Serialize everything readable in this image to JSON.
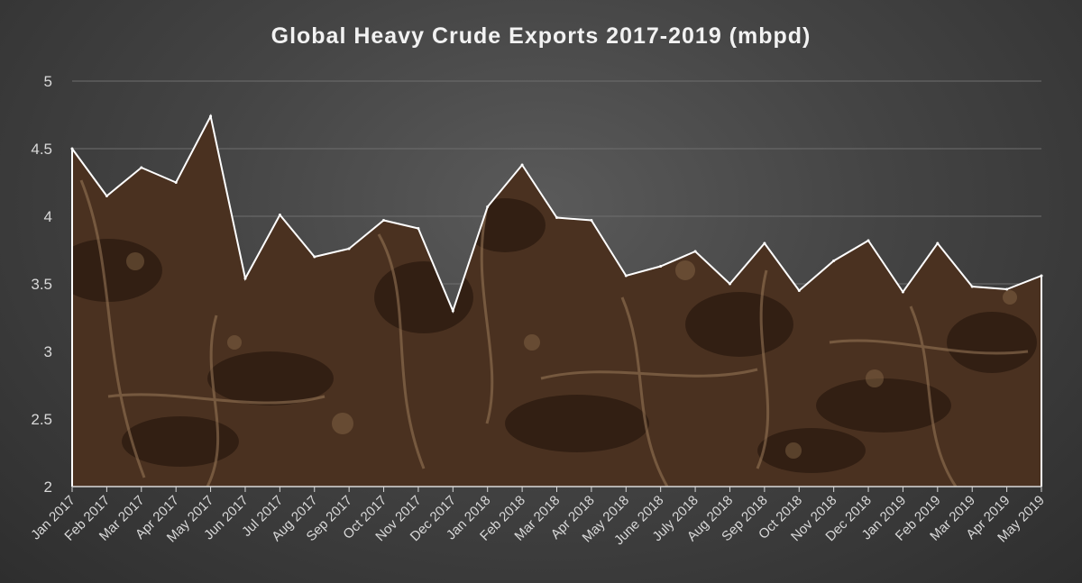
{
  "chart_data": {
    "type": "area",
    "title": "Global Heavy Crude Exports 2017-2019 (mbpd)",
    "xlabel": "",
    "ylabel": "",
    "ylim": [
      2,
      5
    ],
    "yticks": [
      "2",
      "2.5",
      "3",
      "3.5",
      "4",
      "4.5",
      "5"
    ],
    "grid": true,
    "legend": "none",
    "categories": [
      "Jan 2017",
      "Feb 2017",
      "Mar 2017",
      "Apr 2017",
      "May 2017",
      "Jun 2017",
      "Jul 2017",
      "Aug 2017",
      "Sep 2017",
      "Oct 2017",
      "Nov 2017",
      "Dec 2017",
      "Jan 2018",
      "Feb 2018",
      "Mar 2018",
      "Apr 2018",
      "May 2018",
      "June 2018",
      "July 2018",
      "Aug 2018",
      "Sep 2018",
      "Oct 2018",
      "Nov 2018",
      "Dec 2018",
      "Jan 2019",
      "Feb 2019",
      "Mar 2019",
      "Apr 2019",
      "May 2019"
    ],
    "values": [
      4.5,
      4.15,
      4.36,
      4.25,
      4.74,
      3.54,
      4.01,
      3.7,
      3.76,
      3.97,
      3.91,
      3.3,
      4.07,
      4.38,
      3.99,
      3.97,
      3.56,
      3.63,
      3.74,
      3.5,
      3.8,
      3.45,
      3.67,
      3.82,
      3.44,
      3.8,
      3.48,
      3.46,
      3.56
    ],
    "colors": {
      "area_fill": "#4a3120",
      "outline": "#ffffff",
      "gridline": "#6e6e6e",
      "axis": "#d9d9d9",
      "text": "#d9d9d9",
      "title": "#f2f2f2"
    }
  }
}
